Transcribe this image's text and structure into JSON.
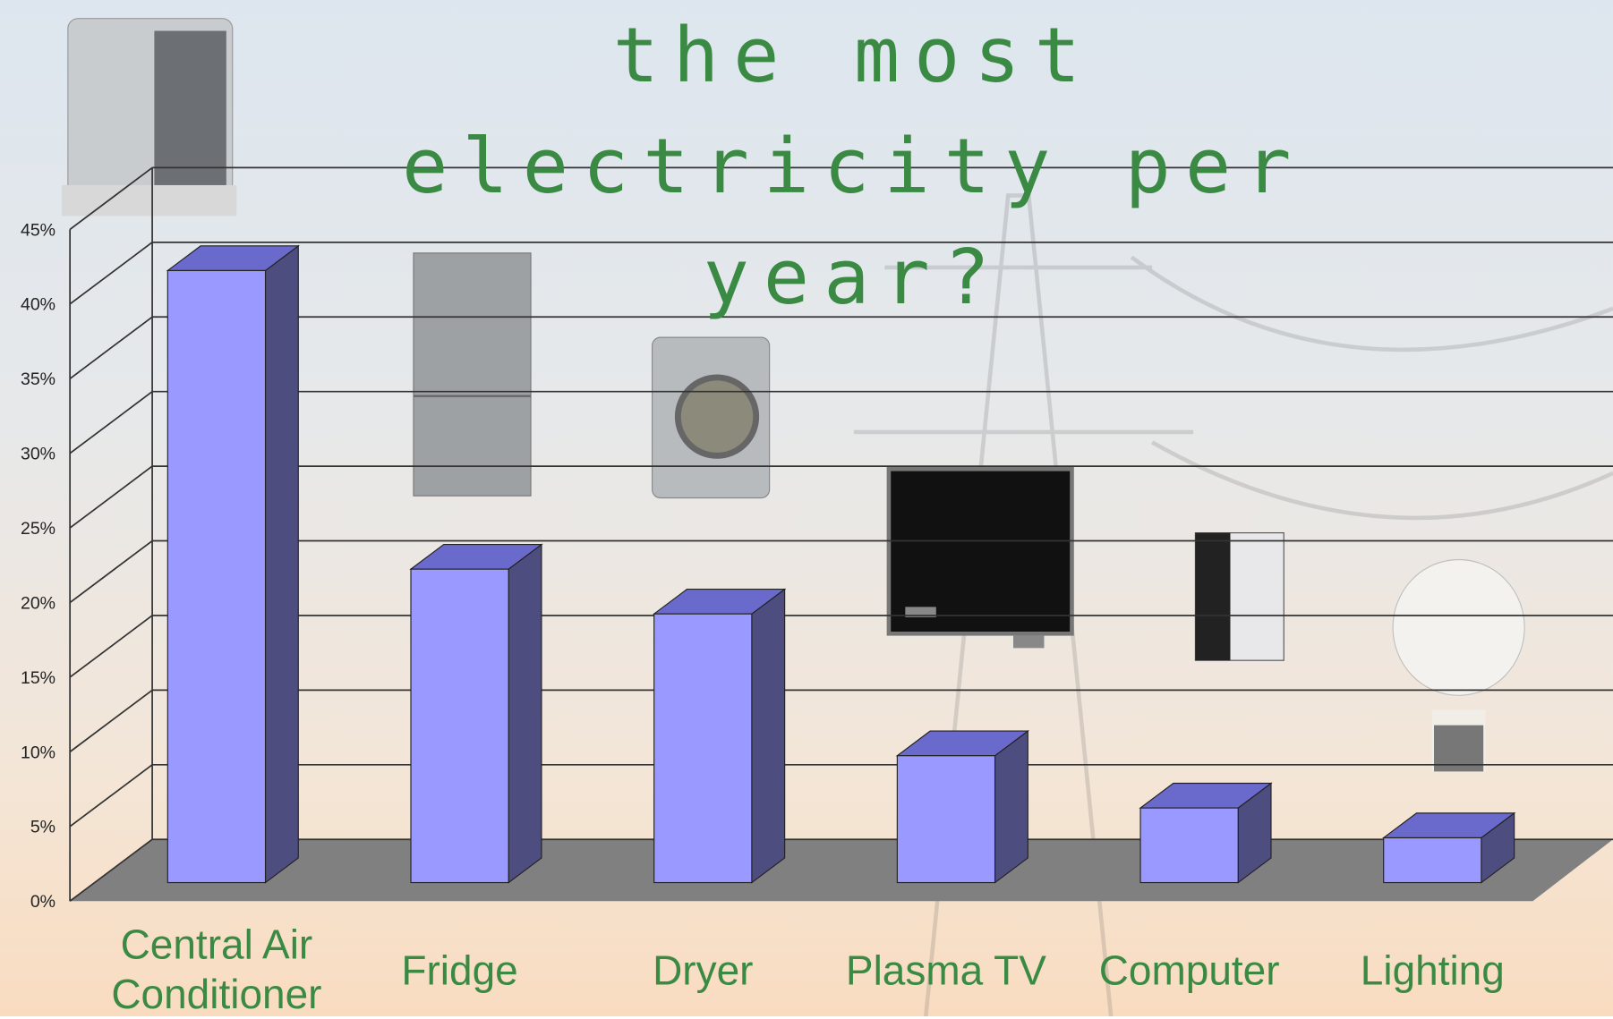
{
  "chart_data": {
    "type": "bar3d",
    "title": "the most electricity per year?",
    "categories": [
      "Central Air Conditioner",
      "Fridge",
      "Dryer",
      "Plasma TV",
      "Computer",
      "Lighting"
    ],
    "values": [
      41,
      21,
      18,
      8.5,
      5,
      3
    ],
    "color": "#9999ff",
    "ylim": [
      0,
      45
    ],
    "yticks": [
      {
        "value": 0,
        "label": "0%"
      },
      {
        "value": 5,
        "label": "5%"
      },
      {
        "value": 10,
        "label": "10%"
      },
      {
        "value": 15,
        "label": "15%"
      },
      {
        "value": 20,
        "label": "20%"
      },
      {
        "value": 25,
        "label": "25%"
      },
      {
        "value": 30,
        "label": "30%"
      },
      {
        "value": 35,
        "label": "35%"
      },
      {
        "value": 40,
        "label": "40%"
      },
      {
        "value": 45,
        "label": "45%"
      }
    ],
    "grid": true
  }
}
